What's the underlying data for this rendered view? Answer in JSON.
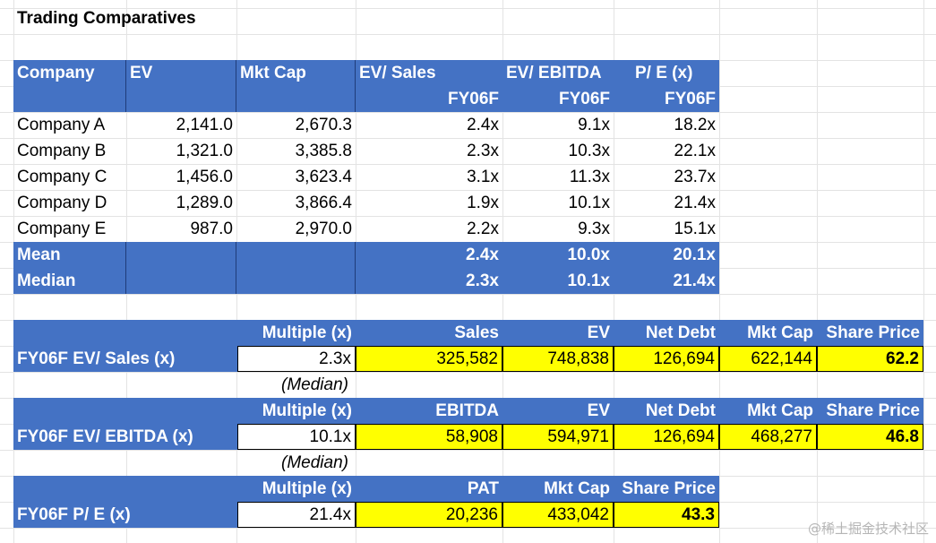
{
  "title": "Trading Comparatives",
  "comps": {
    "headers": [
      "Company",
      "EV",
      "Mkt Cap",
      "EV/ Sales",
      "EV/ EBITDA",
      "P/ E (x)"
    ],
    "subheaders": [
      "FY06F",
      "FY06F",
      "FY06F"
    ],
    "rows": [
      [
        "Company A",
        "2,141.0",
        "2,670.3",
        "2.4x",
        "9.1x",
        "18.2x"
      ],
      [
        "Company B",
        "1,321.0",
        "3,385.8",
        "2.3x",
        "10.3x",
        "22.1x"
      ],
      [
        "Company C",
        "1,456.0",
        "3,623.4",
        "3.1x",
        "11.3x",
        "23.7x"
      ],
      [
        "Company D",
        "1,289.0",
        "3,866.4",
        "1.9x",
        "10.1x",
        "21.4x"
      ],
      [
        "Company E",
        "987.0",
        "2,970.0",
        "2.2x",
        "9.3x",
        "15.1x"
      ]
    ],
    "mean": {
      "label": "Mean",
      "ev_sales": "2.4x",
      "ev_ebitda": "10.0x",
      "pe": "20.1x"
    },
    "median": {
      "label": "Median",
      "ev_sales": "2.3x",
      "ev_ebitda": "10.1x",
      "pe": "21.4x"
    }
  },
  "val_sales": {
    "headers": [
      "Multiple (x)",
      "Sales",
      "EV",
      "Net Debt",
      "Mkt Cap",
      "Share Price"
    ],
    "label": "FY06F EV/ Sales (x)",
    "values": [
      "2.3x",
      "325,582",
      "748,838",
      "126,694",
      "622,144",
      "62.2"
    ],
    "note": "(Median)"
  },
  "val_ebitda": {
    "headers": [
      "Multiple (x)",
      "EBITDA",
      "EV",
      "Net Debt",
      "Mkt Cap",
      "Share Price"
    ],
    "label": "FY06F EV/ EBITDA (x)",
    "values": [
      "10.1x",
      "58,908",
      "594,971",
      "126,694",
      "468,277",
      "46.8"
    ],
    "note": "(Median)"
  },
  "val_pe": {
    "headers": [
      "Multiple (x)",
      "PAT",
      "Mkt Cap",
      "Share Price"
    ],
    "label": "FY06F P/ E (x)",
    "values": [
      "21.4x",
      "20,236",
      "433,042",
      "43.3"
    ]
  },
  "watermark": "@稀土掘金技术社区",
  "colors": {
    "header_blue": "#4472c4",
    "highlight_yellow": "#ffff00"
  }
}
